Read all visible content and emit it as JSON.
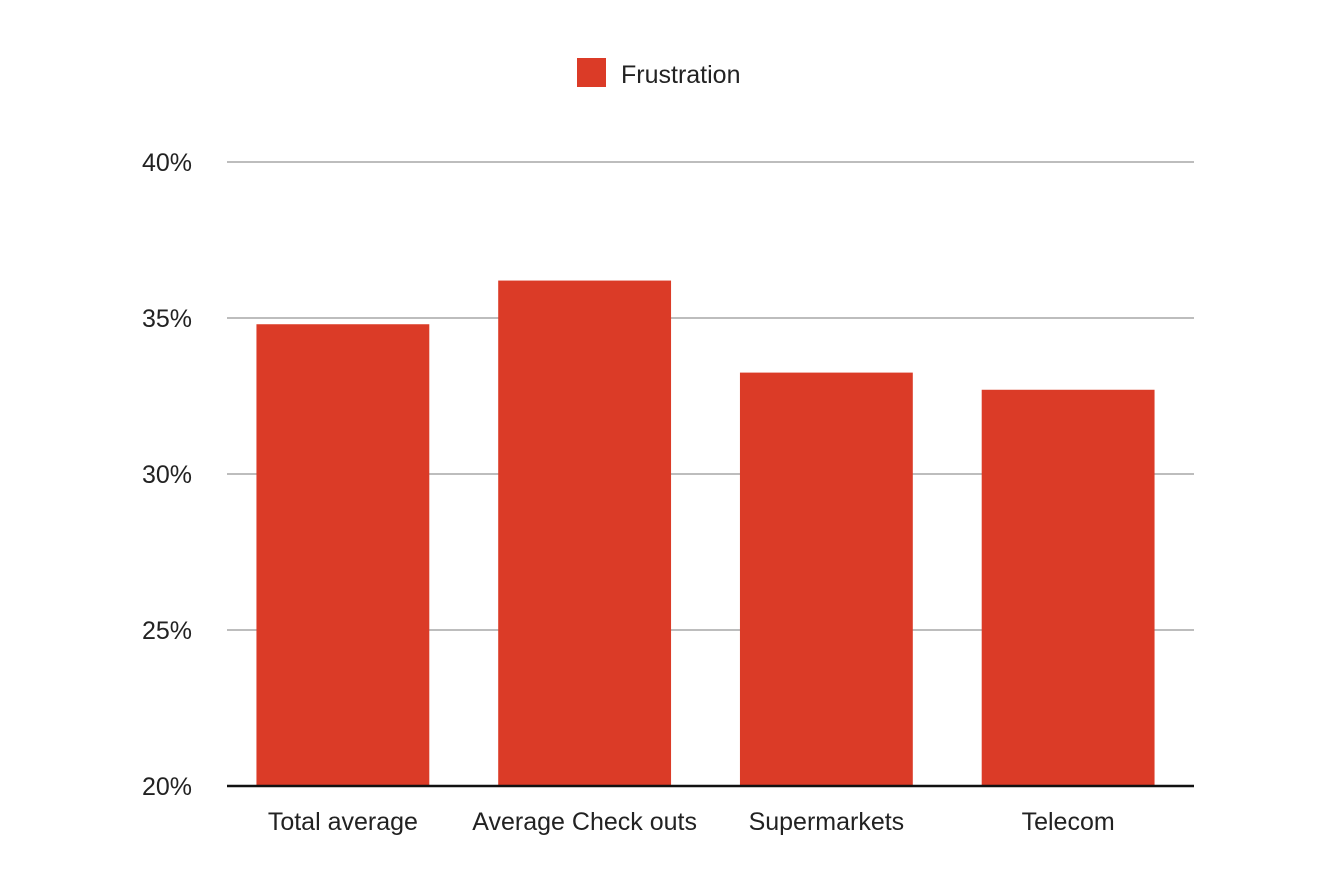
{
  "chart_data": {
    "type": "bar",
    "categories": [
      "Total average",
      "Average Check outs",
      "Supermarkets",
      "Telecom"
    ],
    "series": [
      {
        "name": "Frustration",
        "color": "#db3b27",
        "values": [
          34.8,
          36.2,
          33.25,
          32.7
        ]
      }
    ],
    "ylim": [
      20,
      40
    ],
    "yticks": [
      20,
      25,
      30,
      35,
      40
    ],
    "ytick_labels": [
      "20%",
      "25%",
      "30%",
      "35%",
      "40%"
    ],
    "grid": true,
    "legend": {
      "position": "top-center",
      "entries": [
        "Frustration"
      ]
    }
  }
}
